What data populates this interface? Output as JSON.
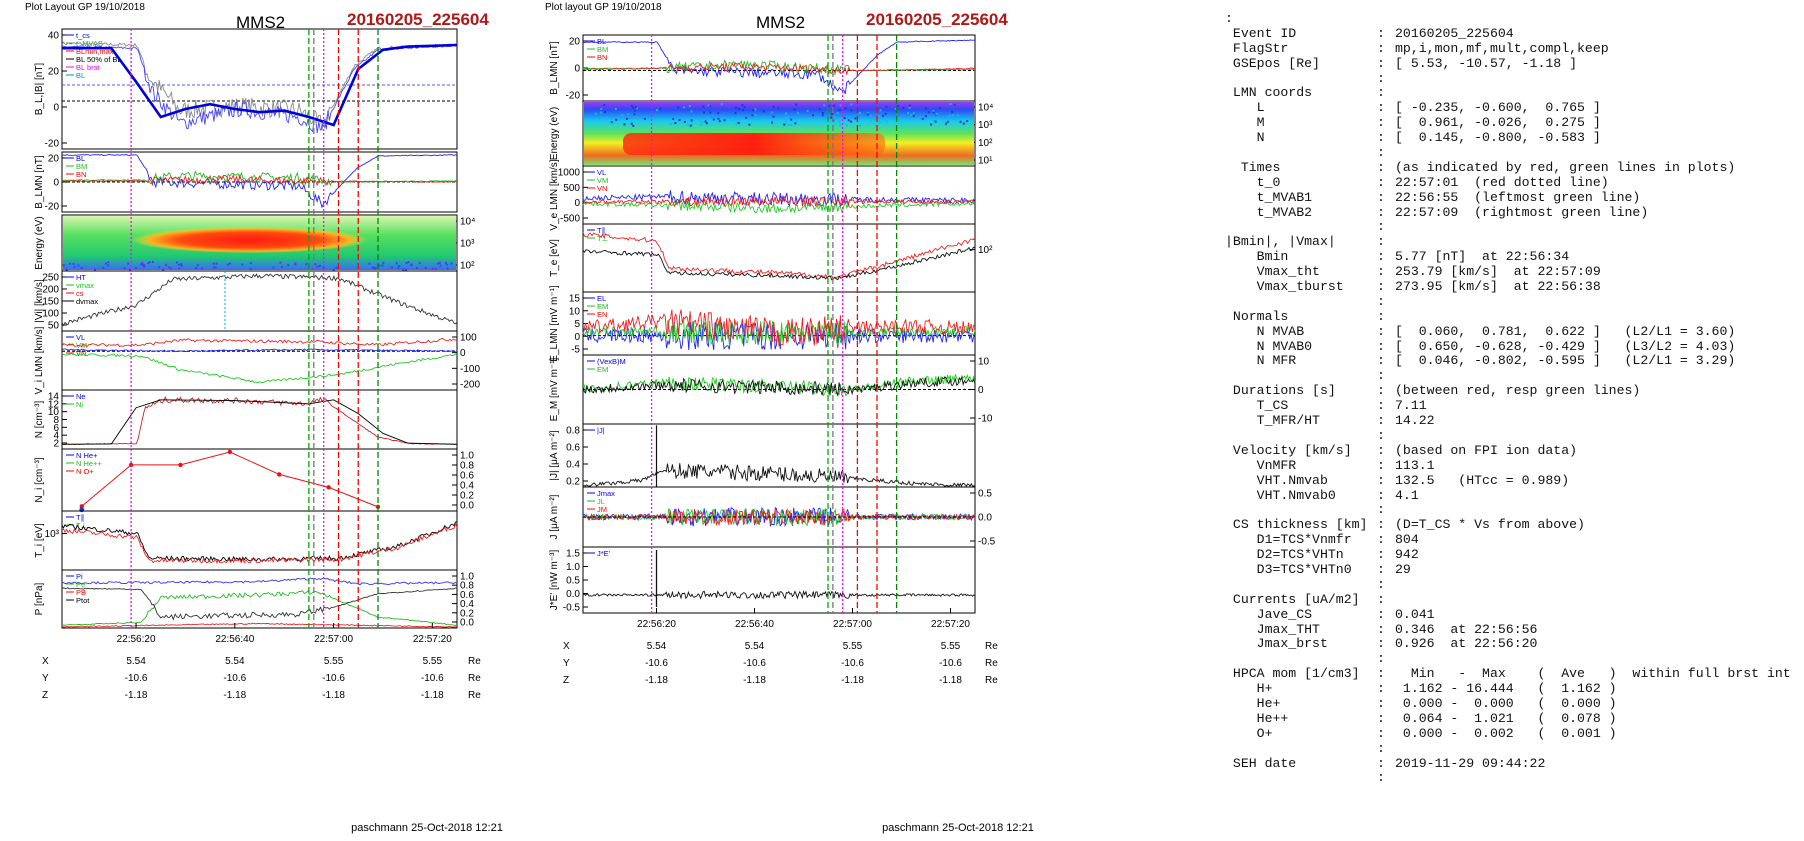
{
  "left": {
    "layout_label": "Plot Layout GP 19/10/2018",
    "spacecraft": "MMS2",
    "event": "20160205_225604",
    "footer": "paschmann 25-Oct-2018 12:21",
    "time_ticks": [
      "22:56:20",
      "22:56:40",
      "22:57:00",
      "22:57:20"
    ],
    "pos_rows": [
      {
        "label": "X",
        "values": [
          "5.54",
          "5.54",
          "5.55",
          "5.55"
        ],
        "unit": "Re"
      },
      {
        "label": "Y",
        "values": [
          "-10.6",
          "-10.6",
          "-10.6",
          "-10.6"
        ],
        "unit": "Re"
      },
      {
        "label": "Z",
        "values": [
          "-1.18",
          "-1.18",
          "-1.18",
          "-1.18"
        ],
        "unit": "Re"
      }
    ],
    "panels": [
      {
        "ylabel": "B_L,|B| [nT]",
        "ticks_left": [
          "40",
          "20",
          "0",
          "-20"
        ],
        "ticks_right": [],
        "legend": [
          "t_cs",
          "t_MVAB",
          "BLmin,max",
          "BL 50% of BL",
          "BL brst",
          "BL"
        ]
      },
      {
        "ylabel": "B_LMN [nT]",
        "ticks_left": [
          "20",
          "0",
          "-20"
        ],
        "ticks_right": [],
        "legend": [
          "BL",
          "BM",
          "BN"
        ]
      },
      {
        "ylabel": "Energy (eV)",
        "ticks_left": [],
        "ticks_right": [
          "10⁴",
          "10³",
          "10²"
        ],
        "legend": []
      },
      {
        "ylabel": "|Vi| [km/s]",
        "ticks_left": [
          "250",
          "200",
          "150",
          "100",
          "50"
        ],
        "ticks_right": [],
        "legend": [
          "HT",
          "vmax",
          "cs",
          "dvmax"
        ]
      },
      {
        "ylabel": "V_i LMN [km/s]",
        "ticks_left": [],
        "ticks_right": [
          "100",
          "0",
          "-100",
          "-200"
        ],
        "legend": [
          "VL",
          "VM",
          "VN"
        ]
      },
      {
        "ylabel": "N [cm⁻³]",
        "ticks_left": [
          "14",
          "12",
          "10",
          "8",
          "6",
          "4",
          "2"
        ],
        "ticks_right": [],
        "legend": [
          "Ne",
          "Ni"
        ]
      },
      {
        "ylabel": "N_i [cm⁻³]",
        "ticks_left": [],
        "ticks_right": [
          "1.0",
          "0.8",
          "0.6",
          "0.4",
          "0.2",
          "0.0"
        ],
        "legend": [
          "N He+",
          "N He++",
          "N O+"
        ]
      },
      {
        "ylabel": "T_i [eV]",
        "ticks_left": [
          "10³"
        ],
        "ticks_right": [],
        "legend": [
          "T∥",
          "T⊥"
        ]
      },
      {
        "ylabel": "P [nPa]",
        "ticks_left": [],
        "ticks_right": [
          "1.0",
          "0.8",
          "0.6",
          "0.4",
          "0.2",
          "0.0"
        ],
        "legend": [
          "Pi",
          "Pe",
          "PB",
          "Ptot"
        ]
      }
    ]
  },
  "middle": {
    "layout_label": "Plot layout GP 19/10/2018",
    "spacecraft": "MMS2",
    "event": "20160205_225604",
    "footer": "paschmann 25-Oct-2018 12:21",
    "time_ticks": [
      "22:56:20",
      "22:56:40",
      "22:57:00",
      "22:57:20"
    ],
    "pos_rows": [
      {
        "label": "X",
        "values": [
          "5.54",
          "5.54",
          "5.55",
          "5.55"
        ],
        "unit": "Re"
      },
      {
        "label": "Y",
        "values": [
          "-10.6",
          "-10.6",
          "-10.6",
          "-10.6"
        ],
        "unit": "Re"
      },
      {
        "label": "Z",
        "values": [
          "-1.18",
          "-1.18",
          "-1.18",
          "-1.18"
        ],
        "unit": "Re"
      }
    ],
    "panels": [
      {
        "ylabel": "B_LMN [nT]",
        "ticks_left": [
          "20",
          "0",
          "-20"
        ],
        "ticks_right": [],
        "legend": [
          "BL",
          "BM",
          "BN"
        ]
      },
      {
        "ylabel": "Energy (eV)",
        "ticks_left": [],
        "ticks_right": [
          "10⁴",
          "10³",
          "10²",
          "10¹"
        ],
        "legend": []
      },
      {
        "ylabel": "V_e LMN [km/s]",
        "ticks_left": [
          "1000",
          "500",
          "0",
          "-500"
        ],
        "ticks_right": [],
        "legend": [
          "VL",
          "VM",
          "VN"
        ]
      },
      {
        "ylabel": "T_e [eV]",
        "ticks_left": [],
        "ticks_right": [
          "10²"
        ],
        "legend": [
          "T∥",
          "T⊥"
        ]
      },
      {
        "ylabel": "E_LMN [mV m⁻¹]",
        "ticks_left": [
          "15",
          "10",
          "5",
          "0",
          "-5"
        ],
        "ticks_right": [],
        "legend": [
          "EL",
          "EM",
          "EN"
        ]
      },
      {
        "ylabel": "E_M [mV m⁻¹]",
        "ticks_left": [],
        "ticks_right": [
          "10",
          "0",
          "-10"
        ],
        "legend": [
          "(VexB)M",
          "EM"
        ]
      },
      {
        "ylabel": "|J| [μA m⁻²]",
        "ticks_left": [
          "0.8",
          "0.6",
          "0.4",
          "0.2"
        ],
        "ticks_right": [],
        "legend": [
          "|J|"
        ]
      },
      {
        "ylabel": "J [μA m⁻²]",
        "ticks_left": [],
        "ticks_right": [
          "0.5",
          "0.0",
          "-0.5"
        ],
        "legend": [
          "Jmax",
          "JL",
          "JM",
          "JN"
        ]
      },
      {
        "ylabel": "J*E' [nW m⁻³]",
        "ticks_left": [
          "1.5",
          "1.0",
          "0.5",
          "0.0",
          "-0.5"
        ],
        "ticks_right": [],
        "legend": [
          "J*E'"
        ]
      }
    ]
  },
  "summary": [
    {
      "k": ":",
      "c": "",
      "v": ""
    },
    {
      "k": " Event ID",
      "c": ":",
      "v": "20160205_225604"
    },
    {
      "k": " FlagStr",
      "c": ":",
      "v": "mp,i,mon,mf,mult,compl,keep"
    },
    {
      "k": " GSEpos [Re]",
      "c": ":",
      "v": "[ 5.53, -10.57, -1.18 ]"
    },
    {
      "k": "",
      "c": ":",
      "v": ""
    },
    {
      "k": " LMN coords",
      "c": ":",
      "v": ""
    },
    {
      "k": "    L",
      "c": ":",
      "v": "[ -0.235, -0.600,  0.765 ]"
    },
    {
      "k": "    M",
      "c": ":",
      "v": "[  0.961, -0.026,  0.275 ]"
    },
    {
      "k": "    N",
      "c": ":",
      "v": "[  0.145, -0.800, -0.583 ]"
    },
    {
      "k": "",
      "c": ":",
      "v": ""
    },
    {
      "k": "  Times",
      "c": ":",
      "v": "(as indicated by red, green lines in plots)"
    },
    {
      "k": "    t_0",
      "c": ":",
      "v": "22:57:01  (red dotted line)"
    },
    {
      "k": "    t_MVAB1",
      "c": ":",
      "v": "22:56:55  (leftmost green line)"
    },
    {
      "k": "    t_MVAB2",
      "c": ":",
      "v": "22:57:09  (rightmost green line)"
    },
    {
      "k": "",
      "c": ":",
      "v": ""
    },
    {
      "k": "|Bmin|, |Vmax|",
      "c": ":",
      "v": ""
    },
    {
      "k": "    Bmin",
      "c": ":",
      "v": "5.77 [nT]  at 22:56:34"
    },
    {
      "k": "    Vmax_tht",
      "c": ":",
      "v": "253.79 [km/s]  at 22:57:09"
    },
    {
      "k": "    Vmax_tburst",
      "c": ":",
      "v": "273.95 [km/s]  at 22:56:38"
    },
    {
      "k": "",
      "c": ":",
      "v": ""
    },
    {
      "k": " Normals",
      "c": ":",
      "v": ""
    },
    {
      "k": "    N MVAB",
      "c": ":",
      "v": "[  0.060,  0.781,  0.622 ]   (L2/L1 = 3.60)"
    },
    {
      "k": "    N MVAB0",
      "c": ":",
      "v": "[  0.650, -0.628, -0.429 ]   (L3/L2 = 4.03)"
    },
    {
      "k": "    N MFR",
      "c": ":",
      "v": "[  0.046, -0.802, -0.595 ]   (L2/L1 = 3.29)"
    },
    {
      "k": "",
      "c": ":",
      "v": ""
    },
    {
      "k": " Durations [s]",
      "c": ":",
      "v": "(between red, resp green lines)"
    },
    {
      "k": "    T_CS",
      "c": ":",
      "v": "7.11"
    },
    {
      "k": "    T_MFR/HT",
      "c": ":",
      "v": "14.22"
    },
    {
      "k": "",
      "c": ":",
      "v": ""
    },
    {
      "k": " Velocity [km/s]",
      "c": ":",
      "v": "(based on FPI ion data)"
    },
    {
      "k": "    VnMFR",
      "c": ":",
      "v": "113.1"
    },
    {
      "k": "    VHT.Nmvab",
      "c": ":",
      "v": "132.5   (HTcc = 0.989)"
    },
    {
      "k": "    VHT.Nmvab0",
      "c": ":",
      "v": "4.1"
    },
    {
      "k": "",
      "c": ":",
      "v": ""
    },
    {
      "k": " CS thickness [km]",
      "c": ":",
      "v": "(D=T_CS * Vs from above)"
    },
    {
      "k": "    D1=TCS*Vnmfr",
      "c": ":",
      "v": "804"
    },
    {
      "k": "    D2=TCS*VHTn",
      "c": ":",
      "v": "942"
    },
    {
      "k": "    D3=TCS*VHTn0",
      "c": ":",
      "v": "29"
    },
    {
      "k": "",
      "c": ":",
      "v": ""
    },
    {
      "k": " Currents [uA/m2]",
      "c": ":",
      "v": ""
    },
    {
      "k": "    Jave_CS",
      "c": ":",
      "v": "0.041"
    },
    {
      "k": "    Jmax_THT",
      "c": ":",
      "v": "0.346  at 22:56:56"
    },
    {
      "k": "    Jmax_brst",
      "c": ":",
      "v": "0.926  at 22:56:20"
    },
    {
      "k": "",
      "c": ":",
      "v": ""
    },
    {
      "k": " HPCA mom [1/cm3]",
      "c": ":",
      "v": "  Min   -  Max    (  Ave   )  within full brst int"
    },
    {
      "k": "    H+",
      "c": ":",
      "v": " 1.162 - 16.444   (  1.162 )"
    },
    {
      "k": "    He+",
      "c": ":",
      "v": " 0.000 -  0.000   (  0.000 )"
    },
    {
      "k": "    He++",
      "c": ":",
      "v": " 0.064 -  1.021   (  0.078 )"
    },
    {
      "k": "    O+",
      "c": ":",
      "v": " 0.000 -  0.002   (  0.001 )"
    },
    {
      "k": "",
      "c": ":",
      "v": ""
    },
    {
      "k": " SEH date",
      "c": ":",
      "v": "2019-11-29 09:44:22"
    },
    {
      "k": "",
      "c": ":",
      "v": ""
    }
  ],
  "chart_data": [
    {
      "type": "line",
      "title": "MMS2 20160205_225604",
      "x_ticks": [
        "22:56:20",
        "22:56:40",
        "22:57:00",
        "22:57:20"
      ],
      "xlim": [
        "22:56:05",
        "22:57:25"
      ],
      "markers": {
        "t_MVAB1": "22:56:55",
        "t_0": "22:57:01",
        "t_MVAB2": "22:57:09"
      },
      "series": [
        {
          "name": "BL brst",
          "panel": "B_L,|B| [nT]",
          "color": "#0000ff",
          "x": [
            "22:56:05",
            "22:56:15",
            "22:56:20",
            "22:56:25",
            "22:56:30",
            "22:56:35",
            "22:56:40",
            "22:56:45",
            "22:56:50",
            "22:56:55",
            "22:57:00",
            "22:57:05",
            "22:57:10",
            "22:57:15",
            "22:57:25"
          ],
          "values": [
            33,
            33,
            12,
            -10,
            -5,
            -2,
            -5,
            -7,
            -6,
            -10,
            -15,
            20,
            32,
            34,
            35
          ]
        },
        {
          "name": "Ni",
          "panel": "N [cm⁻³]",
          "color": "#000000",
          "x": [
            "22:56:05",
            "22:56:15",
            "22:56:20",
            "22:56:25",
            "22:56:40",
            "22:56:55",
            "22:57:00",
            "22:57:05",
            "22:57:10",
            "22:57:15",
            "22:57:25"
          ],
          "values": [
            1.2,
            1.3,
            10.5,
            12.5,
            12.3,
            11.5,
            12.5,
            9,
            4,
            1.5,
            1.2
          ]
        },
        {
          "name": "N He++",
          "panel": "N_i [cm⁻³]",
          "color": "#ff0000",
          "x": [
            "22:56:09",
            "22:56:19",
            "22:56:29",
            "22:56:39",
            "22:56:49",
            "22:56:59",
            "22:57:09"
          ],
          "values": [
            0.08,
            0.78,
            0.78,
            1.0,
            0.62,
            0.4,
            0.07
          ]
        }
      ]
    },
    {
      "type": "line",
      "title": "MMS2 20160205_225604",
      "x_ticks": [
        "22:56:20",
        "22:56:40",
        "22:57:00",
        "22:57:20"
      ],
      "xlim": [
        "22:56:05",
        "22:57:25"
      ],
      "markers": {
        "t_MVAB1": "22:56:55",
        "t_0": "22:57:01",
        "t_MVAB2": "22:57:09"
      },
      "series": [
        {
          "name": "|J|",
          "panel": "|J| [μA m⁻²]",
          "color": "#000000",
          "x": [
            "22:56:05",
            "22:56:15",
            "22:56:20",
            "22:56:25",
            "22:56:30",
            "22:56:40",
            "22:56:50",
            "22:57:00",
            "22:57:10",
            "22:57:25"
          ],
          "values": [
            0.02,
            0.1,
            0.93,
            0.35,
            0.3,
            0.25,
            0.2,
            0.15,
            0.05,
            0.02
          ]
        }
      ]
    }
  ]
}
